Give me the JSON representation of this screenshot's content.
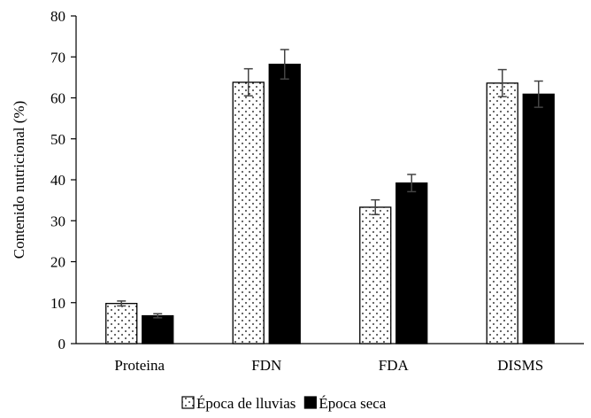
{
  "chart_data": {
    "type": "bar",
    "title": "",
    "xlabel": "",
    "ylabel": "Contenido nutricional (%)",
    "ylim": [
      0,
      80
    ],
    "yticks": [
      0,
      10,
      20,
      30,
      40,
      50,
      60,
      70,
      80
    ],
    "grid": false,
    "legend_position": "bottom",
    "categories": [
      "Proteina",
      "FDN",
      "FDA",
      "DISMS"
    ],
    "series": [
      {
        "name": "Época de lluvias",
        "pattern": "dotted",
        "fill_color": "#ffffff",
        "values": [
          9.8,
          63.8,
          33.3,
          63.6
        ],
        "errors": [
          0.6,
          3.3,
          1.8,
          3.3
        ]
      },
      {
        "name": "Época seca",
        "pattern": "solid",
        "fill_color": "#000000",
        "values": [
          6.8,
          68.2,
          39.2,
          60.9
        ],
        "errors": [
          0.5,
          3.6,
          2.1,
          3.2
        ]
      }
    ]
  }
}
